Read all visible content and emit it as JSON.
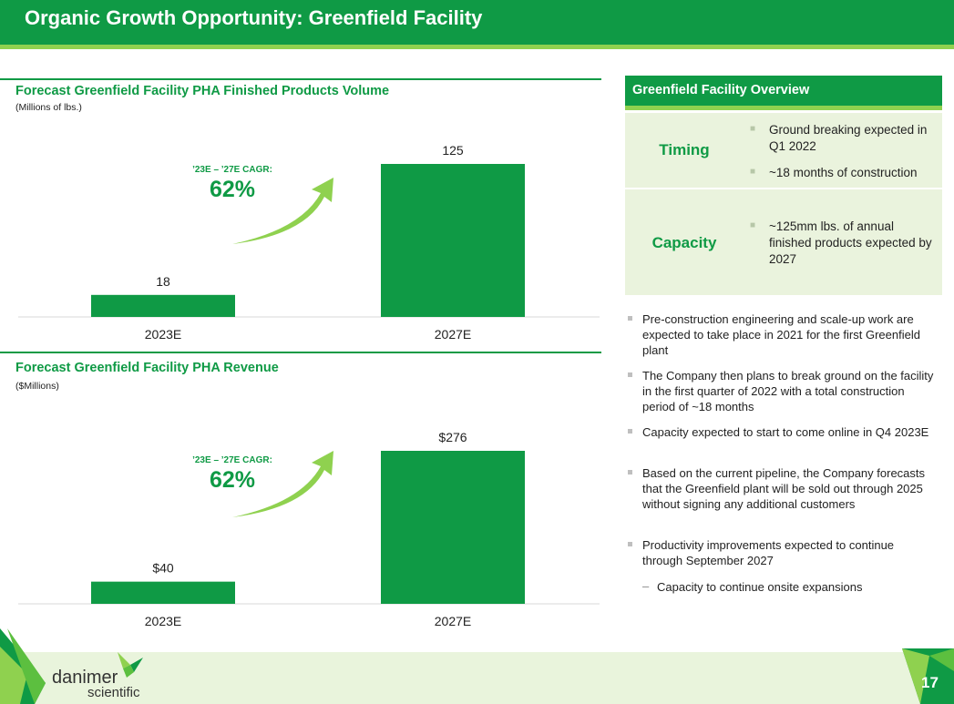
{
  "title": "Organic Growth Opportunity: Greenfield Facility",
  "charts": [
    {
      "title": "Forecast Greenfield Facility PHA Finished Products Volume",
      "subtitle": "(Millions of lbs.)",
      "cagr_label": "’23E – ’27E CAGR:",
      "cagr_value": "62%"
    },
    {
      "title": "Forecast Greenfield Facility PHA Revenue",
      "subtitle": "($Millions)",
      "cagr_label": "’23E – ’27E CAGR:",
      "cagr_value": "62%"
    }
  ],
  "chart_data": [
    {
      "type": "bar",
      "title": "Forecast Greenfield Facility PHA Finished Products Volume",
      "subtitle": "(Millions of lbs.)",
      "categories": [
        "2023E",
        "2027E"
      ],
      "values": [
        18,
        125
      ],
      "value_labels": [
        "18",
        "125"
      ],
      "ylim": [
        0,
        125
      ],
      "grid": false,
      "color": "#0f9a45"
    },
    {
      "type": "bar",
      "title": "Forecast Greenfield Facility PHA Revenue",
      "subtitle": "($Millions)",
      "categories": [
        "2023E",
        "2027E"
      ],
      "values": [
        40,
        276
      ],
      "value_labels": [
        "$40",
        "$276"
      ],
      "ylim": [
        0,
        276
      ],
      "grid": false,
      "color": "#0f9a45"
    }
  ],
  "overview": {
    "title": "Greenfield Facility Overview",
    "rows": [
      {
        "label": "Timing",
        "items": [
          "Ground breaking expected in Q1 2022",
          "~18 months of construction"
        ]
      },
      {
        "label": "Capacity",
        "items": [
          "~125mm lbs. of annual finished products expected by 2027"
        ]
      }
    ]
  },
  "bullets": [
    "Pre-construction engineering and scale-up work are expected to take place in 2021 for the first Greenfield plant",
    "The Company then plans to break ground on the facility in the first quarter of 2022 with a total construction period of ~18 months",
    "Capacity expected to start to come online in Q4 2023E",
    "Based on the current pipeline, the Company forecasts that the Greenfield plant will be sold out through 2025 without signing any additional customers",
    "Productivity improvements expected to continue through September 2027"
  ],
  "sub_bullet": "Capacity to continue onsite expansions",
  "logo": {
    "line1": "danimer",
    "line2": "scientific"
  },
  "page_number": "17",
  "colors": {
    "brand_green": "#0f9a45",
    "accent_green": "#8fd14f",
    "panel_bg": "#eaf3dd",
    "footer_bg": "#e9f4dc"
  }
}
